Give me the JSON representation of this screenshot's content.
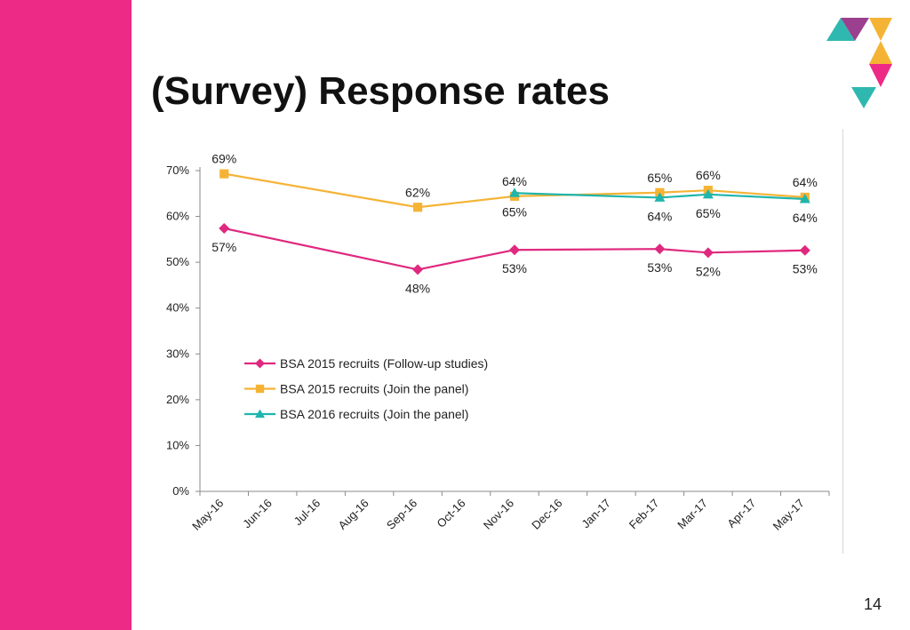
{
  "slide": {
    "title": "(Survey) Response rates",
    "page_number": "14"
  },
  "colors": {
    "sidebar": "#ed2a86",
    "logo": [
      "#2fb8b0",
      "#9b3f8f",
      "#f5b335",
      "#ed2a86"
    ]
  },
  "chart_data": {
    "type": "line",
    "title": "",
    "xlabel": "",
    "ylabel": "",
    "categories": [
      "May-16",
      "Jun-16",
      "Jul-16",
      "Aug-16",
      "Sep-16",
      "Oct-16",
      "Nov-16",
      "Dec-16",
      "Jan-17",
      "Feb-17",
      "Mar-17",
      "Apr-17",
      "May-17"
    ],
    "ylim": [
      0,
      0.7
    ],
    "yticks": [
      "0%",
      "10%",
      "20%",
      "30%",
      "40%",
      "50%",
      "60%",
      "70%"
    ],
    "grid": false,
    "legend_position": "inside-bottom-left",
    "series": [
      {
        "name": "BSA 2015 recruits (Follow-up studies)",
        "color": "#e0287f",
        "marker": "diamond",
        "values": [
          0.574,
          null,
          null,
          null,
          0.484,
          null,
          0.527,
          null,
          null,
          0.529,
          0.521,
          null,
          0.526
        ],
        "labels": [
          "57%",
          null,
          null,
          null,
          "48%",
          null,
          "53%",
          null,
          null,
          "53%",
          "52%",
          null,
          "53%"
        ],
        "label_pos": [
          "below",
          null,
          null,
          null,
          "below",
          null,
          "below",
          null,
          null,
          "below",
          "below",
          null,
          "below"
        ]
      },
      {
        "name": "BSA 2015 recruits (Join the panel)",
        "color": "#f5b335",
        "marker": "square",
        "values": [
          0.693,
          null,
          null,
          null,
          0.62,
          null,
          0.644,
          null,
          null,
          0.652,
          0.657,
          null,
          0.642
        ],
        "labels": [
          "69%",
          null,
          null,
          null,
          "62%",
          null,
          "64%",
          null,
          null,
          "65%",
          "66%",
          null,
          "64%"
        ],
        "label_pos": [
          "above",
          null,
          null,
          null,
          "above",
          null,
          "above",
          null,
          null,
          "above",
          "above",
          null,
          "above"
        ]
      },
      {
        "name": "BSA 2016 recruits (Join the panel)",
        "color": "#1fb5ad",
        "marker": "triangle",
        "values": [
          null,
          null,
          null,
          null,
          null,
          null,
          0.651,
          null,
          null,
          0.641,
          0.648,
          null,
          0.638
        ],
        "labels": [
          null,
          null,
          null,
          null,
          null,
          null,
          "65%",
          null,
          null,
          "64%",
          "65%",
          null,
          "64%"
        ],
        "label_pos": [
          null,
          null,
          null,
          null,
          null,
          null,
          "below",
          null,
          null,
          "below",
          "below",
          null,
          "below"
        ]
      }
    ]
  }
}
